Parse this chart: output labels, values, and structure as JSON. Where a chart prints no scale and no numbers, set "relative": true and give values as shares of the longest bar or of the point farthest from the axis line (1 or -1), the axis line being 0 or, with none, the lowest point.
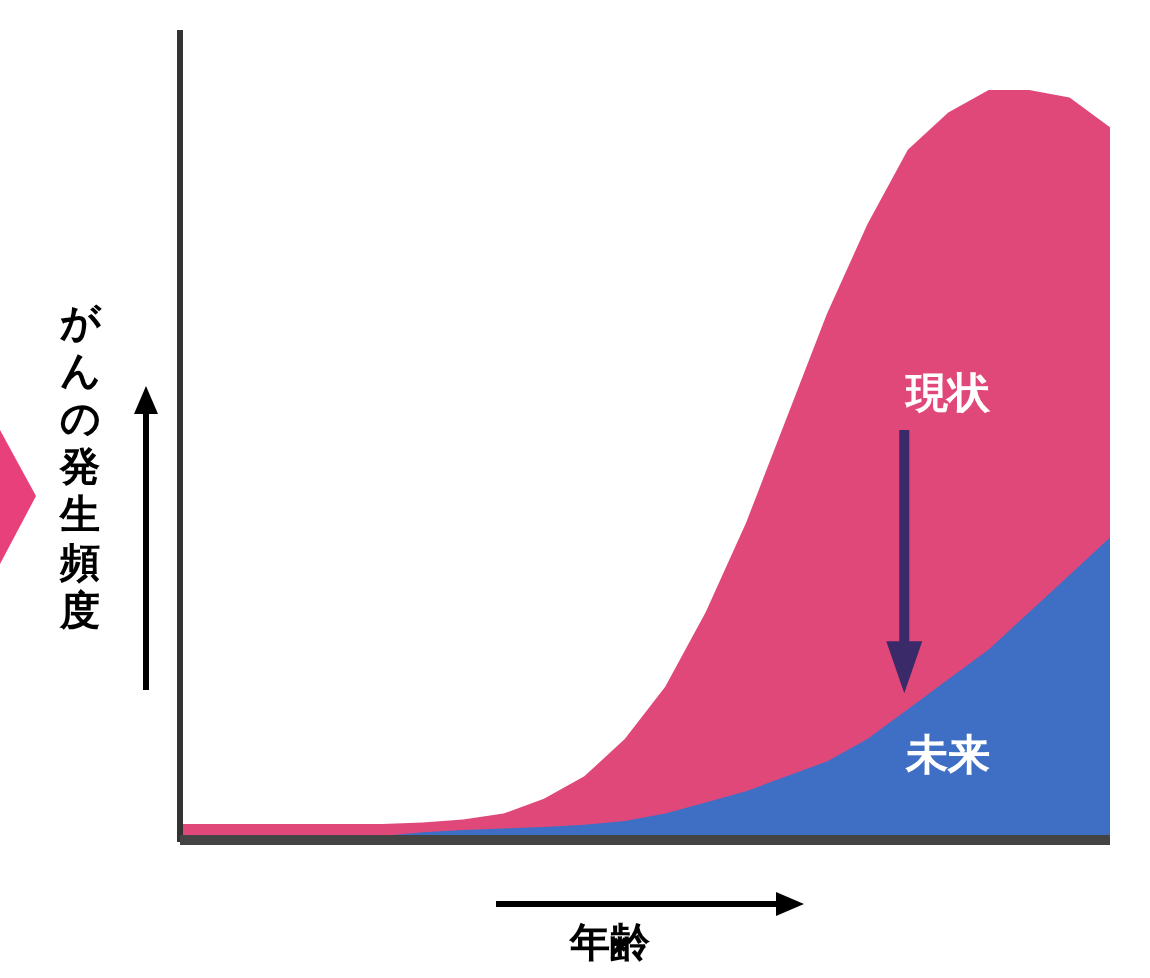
{
  "chart_data": {
    "type": "area",
    "relative": true,
    "xlabel": "年齢",
    "ylabel": "がんの発生頻度",
    "categories": [
      null,
      null,
      null,
      null,
      null,
      null,
      null,
      null,
      null,
      null,
      null,
      null,
      null,
      null,
      null,
      null,
      null,
      null,
      null,
      null,
      null,
      null,
      null,
      null
    ],
    "series": [
      {
        "name": "現状",
        "color": "#e0487a",
        "values": [
          0.016,
          0.016,
          0.016,
          0.016,
          0.016,
          0.016,
          0.018,
          0.022,
          0.03,
          0.05,
          0.08,
          0.13,
          0.2,
          0.3,
          0.42,
          0.56,
          0.7,
          0.82,
          0.92,
          0.97,
          1.0,
          1.0,
          0.99,
          0.95
        ]
      },
      {
        "name": "未来",
        "color": "#3f6fc4",
        "values": [
          0,
          0,
          0,
          0,
          0,
          0,
          0.005,
          0.008,
          0.01,
          0.012,
          0.015,
          0.02,
          0.03,
          0.045,
          0.06,
          0.08,
          0.1,
          0.13,
          0.17,
          0.21,
          0.25,
          0.3,
          0.35,
          0.4
        ]
      }
    ],
    "legend": false,
    "grid": false
  }
}
